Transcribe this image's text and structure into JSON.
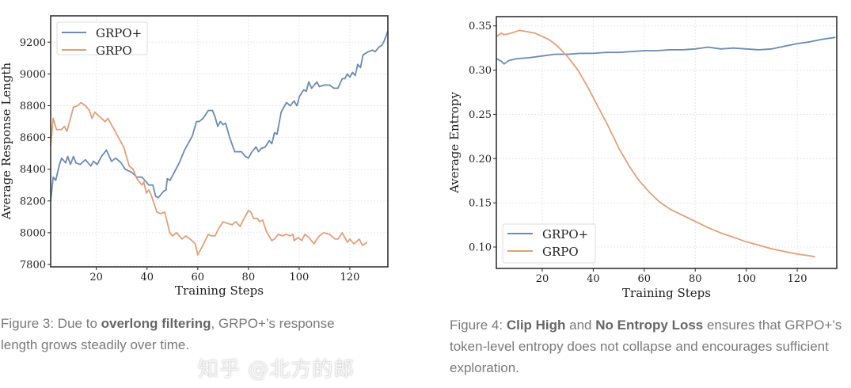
{
  "colors": {
    "grpo_plus": "#6b8ab5",
    "grpo": "#e0a07a",
    "grid": "#e6e6e6",
    "axis": "#222222",
    "caption": "#7a7a7a"
  },
  "chart_data": [
    {
      "type": "line",
      "xlabel": "Training Steps",
      "ylabel": "Average Response Length",
      "xlim": [
        2,
        135
      ],
      "ylim": [
        7785,
        9366
      ],
      "xticks": [
        20,
        40,
        60,
        80,
        100,
        120
      ],
      "yticks": [
        7800,
        8000,
        8200,
        8400,
        8600,
        8800,
        9000,
        9200
      ],
      "grid": true,
      "legend": "top-left",
      "series": [
        {
          "name": "GRPO+",
          "color": "#6b8ab5",
          "x": [
            2,
            3,
            4,
            5.3,
            6.3,
            7.9,
            8.7,
            9.8,
            11,
            12,
            13.6,
            15.7,
            17.8,
            18.9,
            20.4,
            22,
            24,
            26,
            27.7,
            29.8,
            31.4,
            34,
            36,
            38,
            40.7,
            42.3,
            43.4,
            44.4,
            46.5,
            47.5,
            48,
            49.1,
            52.7,
            54.8,
            57.9,
            59.5,
            60.6,
            62.1,
            64.2,
            65.8,
            66.8,
            67.9,
            68.9,
            70,
            71,
            72.6,
            74.6,
            77.2,
            78.8,
            80,
            81.4,
            83,
            84,
            85,
            86.6,
            88.2,
            89.2,
            90.3,
            91.3,
            92.9,
            95,
            96.5,
            98,
            99.1,
            100.2,
            101.8,
            102.8,
            103.8,
            104.9,
            107,
            108,
            110,
            112,
            113.7,
            115.3,
            117,
            118,
            119,
            120,
            121,
            122.1,
            123.1,
            124.2,
            125.2,
            127.3,
            128.9,
            130,
            131.5,
            132.6,
            133.6,
            135
          ],
          "y": [
            8200,
            8350,
            8330,
            8420,
            8470,
            8440,
            8480,
            8430,
            8480,
            8440,
            8430,
            8460,
            8420,
            8450,
            8430,
            8480,
            8520,
            8450,
            8470,
            8440,
            8400,
            8380,
            8350,
            8350,
            8300,
            8300,
            8230,
            8220,
            8260,
            8270,
            8340,
            8330,
            8440,
            8520,
            8610,
            8700,
            8700,
            8720,
            8770,
            8770,
            8730,
            8670,
            8700,
            8680,
            8690,
            8600,
            8510,
            8510,
            8480,
            8470,
            8510,
            8540,
            8510,
            8530,
            8540,
            8580,
            8560,
            8630,
            8620,
            8760,
            8820,
            8800,
            8830,
            8800,
            8860,
            8900,
            8890,
            8950,
            8910,
            8950,
            8920,
            8930,
            8930,
            8910,
            8910,
            8970,
            8970,
            9000,
            8980,
            9010,
            8990,
            9060,
            9040,
            9120,
            9140,
            9150,
            9140,
            9170,
            9180,
            9210,
            9270
          ]
        },
        {
          "name": "GRPO",
          "color": "#e0a07a",
          "x": [
            2,
            3,
            4.3,
            6.3,
            7.4,
            8.4,
            9.8,
            11,
            12.6,
            14,
            15.7,
            17.3,
            18.3,
            19.4,
            22,
            23.5,
            24.6,
            27.7,
            30.8,
            33,
            34.5,
            36,
            38,
            38.7,
            39.7,
            40.7,
            41.8,
            43.9,
            45.4,
            47,
            49,
            50,
            51.7,
            53.8,
            55.3,
            57,
            59,
            60,
            62,
            64.2,
            65.3,
            66.8,
            68.4,
            70,
            71.5,
            73.6,
            75,
            76.7,
            78.3,
            80,
            81,
            82,
            83.5,
            84.5,
            85.6,
            87,
            89.2,
            90.3,
            91.8,
            93.4,
            95,
            96.5,
            97.6,
            98,
            99.7,
            101,
            102.3,
            103.8,
            105.9,
            107,
            108,
            109.6,
            112,
            114.2,
            115.3,
            117,
            119,
            120,
            121.6,
            123.7,
            125,
            126.8
          ],
          "y": [
            8550,
            8720,
            8650,
            8650,
            8670,
            8640,
            8720,
            8790,
            8800,
            8820,
            8800,
            8770,
            8720,
            8760,
            8720,
            8700,
            8720,
            8630,
            8540,
            8420,
            8400,
            8340,
            8300,
            8320,
            8250,
            8270,
            8230,
            8130,
            8120,
            8130,
            8000,
            7980,
            8000,
            7960,
            7980,
            7960,
            7930,
            7860,
            7920,
            7990,
            7980,
            7980,
            8030,
            8070,
            8060,
            8050,
            8070,
            8040,
            8090,
            8140,
            8130,
            8090,
            8090,
            8070,
            8080,
            8010,
            7950,
            7960,
            7990,
            7980,
            7990,
            7980,
            7990,
            7950,
            7970,
            7950,
            7990,
            7970,
            7930,
            7960,
            7980,
            8000,
            7990,
            7960,
            7960,
            8000,
            7940,
            7960,
            7930,
            7960,
            7920,
            7940
          ]
        }
      ]
    },
    {
      "type": "line",
      "xlabel": "Training Steps",
      "ylabel": "Average Entropy",
      "xlim": [
        2,
        135.5
      ],
      "ylim": [
        0.0758,
        0.3605
      ],
      "xticks": [
        20,
        40,
        60,
        80,
        100,
        120
      ],
      "yticks": [
        "0.10",
        "0.15",
        "0.20",
        "0.25",
        "0.30",
        "0.35"
      ],
      "grid": true,
      "legend": "bottom-left",
      "series": [
        {
          "name": "GRPO+",
          "color": "#6b8ab5",
          "x": [
            2,
            4,
            5,
            7,
            10,
            15,
            20,
            25,
            30,
            35,
            40,
            45,
            50,
            55,
            60,
            65,
            70,
            75,
            80,
            85,
            90,
            95,
            100,
            105,
            110,
            115,
            120,
            125,
            130,
            135
          ],
          "y": [
            0.313,
            0.31,
            0.307,
            0.311,
            0.313,
            0.314,
            0.316,
            0.318,
            0.318,
            0.319,
            0.319,
            0.32,
            0.32,
            0.321,
            0.322,
            0.322,
            0.323,
            0.323,
            0.324,
            0.326,
            0.324,
            0.325,
            0.324,
            0.323,
            0.324,
            0.327,
            0.33,
            0.332,
            0.335,
            0.337
          ]
        },
        {
          "name": "GRPO",
          "color": "#e0a07a",
          "x": [
            2,
            4,
            5,
            8,
            11,
            13,
            17,
            20,
            23,
            26,
            30,
            34,
            38,
            42,
            46,
            50,
            54,
            58,
            62,
            66,
            70,
            75,
            80,
            85,
            90,
            95,
            100,
            105,
            110,
            115,
            120,
            125,
            127
          ],
          "y": [
            0.338,
            0.342,
            0.34,
            0.342,
            0.345,
            0.344,
            0.342,
            0.338,
            0.334,
            0.327,
            0.315,
            0.3,
            0.28,
            0.258,
            0.236,
            0.212,
            0.192,
            0.175,
            0.162,
            0.151,
            0.143,
            0.136,
            0.129,
            0.122,
            0.116,
            0.111,
            0.106,
            0.102,
            0.098,
            0.095,
            0.092,
            0.09,
            0.089
          ]
        }
      ]
    }
  ],
  "captions": {
    "fig3": [
      {
        "text": "Figure 3: Due to "
      },
      {
        "text": "overlong filtering",
        "bold": true
      },
      {
        "text": ", GRPO+’s response length grows steadily over time."
      }
    ],
    "fig4": [
      {
        "text": "Figure 4: "
      },
      {
        "text": "Clip High",
        "bold": true
      },
      {
        "text": " and "
      },
      {
        "text": "No Entropy Loss",
        "bold": true
      },
      {
        "text": " ensures that GRPO+’s token-level entropy does not collapse and encourages sufficient exploration."
      }
    ]
  },
  "watermark": "知乎 @北方的郎"
}
